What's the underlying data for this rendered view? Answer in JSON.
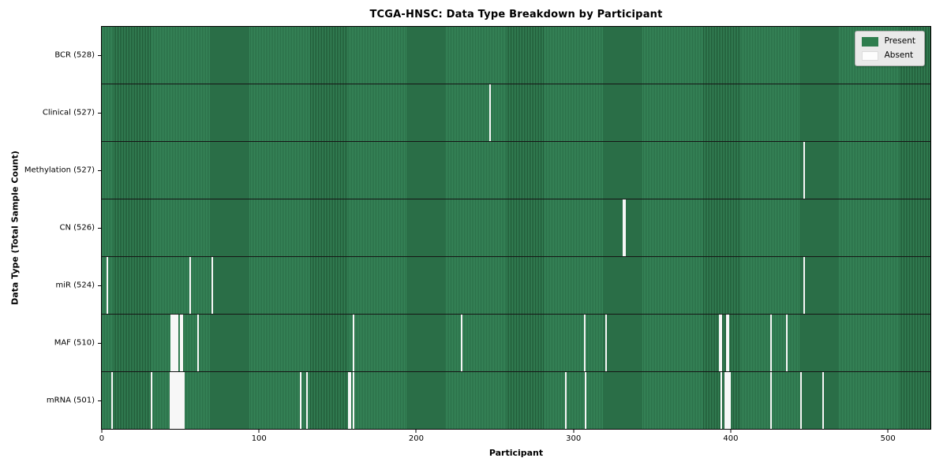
{
  "colors": {
    "present": "#2e7d4e",
    "present_stripe_light": "#37875a",
    "present_stripe_dark": "#1e5634",
    "absent": "#f7f7f7",
    "legend_bg": "#e9e9e9",
    "legend_border": "#b0b0b0"
  },
  "chart_data": {
    "type": "heatmap",
    "title": "TCGA-HNSC: Data Type Breakdown by Participant",
    "xlabel": "Participant",
    "ylabel": "Data Type (Total Sample Count)",
    "n_participants": 528,
    "x_ticks": [
      0,
      100,
      200,
      300,
      400,
      500
    ],
    "x_range": [
      -0.5,
      527.5
    ],
    "legend_entries": [
      "Present",
      "Absent"
    ],
    "legend_position": "upper right",
    "grid": false,
    "rows": [
      {
        "label": "BCR (528)",
        "data_type": "BCR",
        "present_count": 528,
        "absent_participants": []
      },
      {
        "label": "Clinical (527)",
        "data_type": "Clinical",
        "present_count": 527,
        "absent_participants": [
          247
        ]
      },
      {
        "label": "Methylation (527)",
        "data_type": "Methylation",
        "present_count": 527,
        "absent_participants": [
          447
        ]
      },
      {
        "label": "CN (526)",
        "data_type": "CN",
        "present_count": 526,
        "absent_participants": [
          332,
          333
        ]
      },
      {
        "label": "miR (524)",
        "data_type": "miR",
        "present_count": 524,
        "absent_participants": [
          3,
          56,
          70,
          447
        ]
      },
      {
        "label": "MAF (510)",
        "data_type": "MAF",
        "present_count": 510,
        "absent_participants": [
          44,
          45,
          46,
          47,
          48,
          50,
          51,
          61,
          160,
          229,
          307,
          321,
          393,
          394,
          398,
          399,
          426,
          436
        ]
      },
      {
        "label": "mRNA (501)",
        "data_type": "mRNA",
        "present_count": 501,
        "absent_participants": [
          6,
          31,
          43,
          44,
          45,
          46,
          47,
          48,
          49,
          50,
          51,
          52,
          126,
          130,
          157,
          158,
          160,
          295,
          308,
          394,
          397,
          398,
          399,
          400,
          426,
          445,
          459
        ]
      }
    ]
  }
}
